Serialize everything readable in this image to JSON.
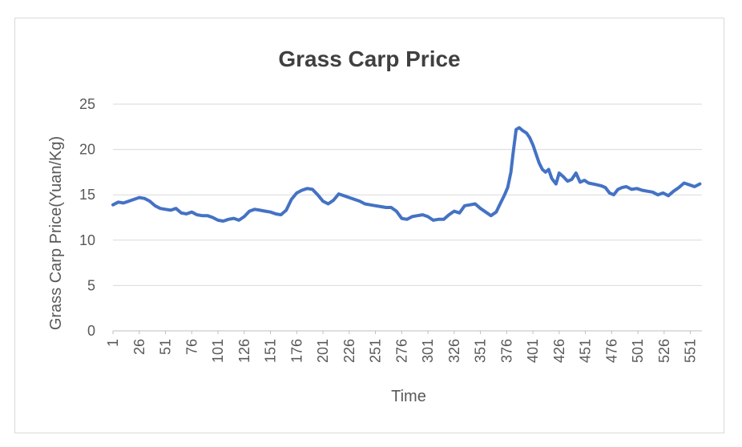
{
  "chart_data": {
    "type": "line",
    "title": "Grass Carp Price",
    "xlabel": "Time",
    "ylabel": "Grass Carp Price(Yuan/Kg)",
    "ylim": [
      0,
      25
    ],
    "yticks": [
      "0",
      "5",
      "10",
      "15",
      "20",
      "25"
    ],
    "xticks": [
      "1",
      "26",
      "51",
      "76",
      "101",
      "126",
      "151",
      "176",
      "201",
      "226",
      "251",
      "276",
      "301",
      "326",
      "351",
      "376",
      "401",
      "426",
      "451",
      "476",
      "501",
      "526",
      "551"
    ],
    "x_range": [
      1,
      562
    ],
    "grid": true,
    "legend": "none",
    "color": "#4472c4",
    "series": [
      {
        "name": "Grass Carp Price",
        "x": [
          1,
          6,
          11,
          16,
          21,
          26,
          31,
          36,
          41,
          46,
          51,
          56,
          61,
          66,
          71,
          76,
          81,
          86,
          91,
          96,
          101,
          106,
          111,
          116,
          121,
          126,
          131,
          136,
          141,
          146,
          151,
          156,
          161,
          166,
          171,
          176,
          181,
          186,
          191,
          196,
          201,
          206,
          211,
          216,
          221,
          226,
          231,
          236,
          241,
          246,
          251,
          256,
          261,
          266,
          271,
          276,
          281,
          286,
          291,
          296,
          301,
          306,
          311,
          316,
          321,
          326,
          331,
          336,
          341,
          346,
          351,
          356,
          361,
          366,
          371,
          374,
          377,
          380,
          382,
          385,
          388,
          391,
          395,
          398,
          401,
          404,
          407,
          410,
          413,
          416,
          419,
          423,
          426,
          430,
          434,
          438,
          442,
          446,
          450,
          454,
          458,
          462,
          466,
          470,
          474,
          478,
          482,
          486,
          490,
          495,
          500,
          505,
          510,
          515,
          520,
          525,
          530,
          535,
          540,
          545,
          550,
          555,
          560
        ],
        "y": [
          13.9,
          14.2,
          14.1,
          14.3,
          14.5,
          14.7,
          14.6,
          14.3,
          13.8,
          13.5,
          13.4,
          13.3,
          13.5,
          13.0,
          12.9,
          13.1,
          12.8,
          12.7,
          12.7,
          12.5,
          12.2,
          12.1,
          12.3,
          12.4,
          12.2,
          12.6,
          13.2,
          13.4,
          13.3,
          13.2,
          13.1,
          12.9,
          12.8,
          13.3,
          14.5,
          15.2,
          15.5,
          15.7,
          15.6,
          15.0,
          14.3,
          14.0,
          14.4,
          15.1,
          14.9,
          14.7,
          14.5,
          14.3,
          14.0,
          13.9,
          13.8,
          13.7,
          13.6,
          13.6,
          13.2,
          12.4,
          12.3,
          12.6,
          12.7,
          12.8,
          12.6,
          12.2,
          12.3,
          12.3,
          12.8,
          13.2,
          13.0,
          13.8,
          13.9,
          14.0,
          13.5,
          13.1,
          12.7,
          13.1,
          14.3,
          15.0,
          15.8,
          17.5,
          19.5,
          22.2,
          22.4,
          22.1,
          21.8,
          21.3,
          20.5,
          19.5,
          18.5,
          17.8,
          17.5,
          17.8,
          16.8,
          16.2,
          17.4,
          17.0,
          16.5,
          16.7,
          17.4,
          16.4,
          16.6,
          16.3,
          16.2,
          16.1,
          16.0,
          15.8,
          15.2,
          15.0,
          15.6,
          15.8,
          15.9,
          15.6,
          15.7,
          15.5,
          15.4,
          15.3,
          15.0,
          15.2,
          14.9,
          15.4,
          15.8,
          16.3,
          16.1,
          15.9,
          16.2
        ]
      }
    ]
  }
}
